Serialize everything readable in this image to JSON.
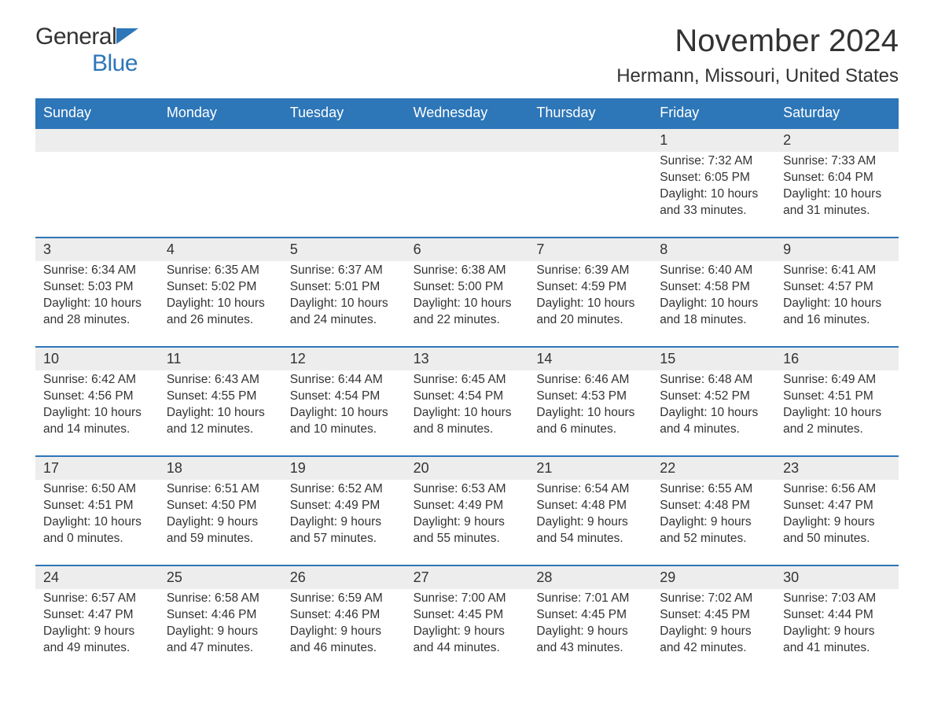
{
  "logo": {
    "word1": "General",
    "word2": "Blue"
  },
  "title": "November 2024",
  "location": "Hermann, Missouri, United States",
  "colors": {
    "brand": "#2d76b8",
    "row_bg": "#ededed",
    "text": "#333333",
    "bg": "#ffffff"
  },
  "days_of_week": [
    "Sunday",
    "Monday",
    "Tuesday",
    "Wednesday",
    "Thursday",
    "Friday",
    "Saturday"
  ],
  "weeks": [
    [
      null,
      null,
      null,
      null,
      null,
      {
        "n": "1",
        "sunrise": "Sunrise: 7:32 AM",
        "sunset": "Sunset: 6:05 PM",
        "day1": "Daylight: 10 hours",
        "day2": "and 33 minutes."
      },
      {
        "n": "2",
        "sunrise": "Sunrise: 7:33 AM",
        "sunset": "Sunset: 6:04 PM",
        "day1": "Daylight: 10 hours",
        "day2": "and 31 minutes."
      }
    ],
    [
      {
        "n": "3",
        "sunrise": "Sunrise: 6:34 AM",
        "sunset": "Sunset: 5:03 PM",
        "day1": "Daylight: 10 hours",
        "day2": "and 28 minutes."
      },
      {
        "n": "4",
        "sunrise": "Sunrise: 6:35 AM",
        "sunset": "Sunset: 5:02 PM",
        "day1": "Daylight: 10 hours",
        "day2": "and 26 minutes."
      },
      {
        "n": "5",
        "sunrise": "Sunrise: 6:37 AM",
        "sunset": "Sunset: 5:01 PM",
        "day1": "Daylight: 10 hours",
        "day2": "and 24 minutes."
      },
      {
        "n": "6",
        "sunrise": "Sunrise: 6:38 AM",
        "sunset": "Sunset: 5:00 PM",
        "day1": "Daylight: 10 hours",
        "day2": "and 22 minutes."
      },
      {
        "n": "7",
        "sunrise": "Sunrise: 6:39 AM",
        "sunset": "Sunset: 4:59 PM",
        "day1": "Daylight: 10 hours",
        "day2": "and 20 minutes."
      },
      {
        "n": "8",
        "sunrise": "Sunrise: 6:40 AM",
        "sunset": "Sunset: 4:58 PM",
        "day1": "Daylight: 10 hours",
        "day2": "and 18 minutes."
      },
      {
        "n": "9",
        "sunrise": "Sunrise: 6:41 AM",
        "sunset": "Sunset: 4:57 PM",
        "day1": "Daylight: 10 hours",
        "day2": "and 16 minutes."
      }
    ],
    [
      {
        "n": "10",
        "sunrise": "Sunrise: 6:42 AM",
        "sunset": "Sunset: 4:56 PM",
        "day1": "Daylight: 10 hours",
        "day2": "and 14 minutes."
      },
      {
        "n": "11",
        "sunrise": "Sunrise: 6:43 AM",
        "sunset": "Sunset: 4:55 PM",
        "day1": "Daylight: 10 hours",
        "day2": "and 12 minutes."
      },
      {
        "n": "12",
        "sunrise": "Sunrise: 6:44 AM",
        "sunset": "Sunset: 4:54 PM",
        "day1": "Daylight: 10 hours",
        "day2": "and 10 minutes."
      },
      {
        "n": "13",
        "sunrise": "Sunrise: 6:45 AM",
        "sunset": "Sunset: 4:54 PM",
        "day1": "Daylight: 10 hours",
        "day2": "and 8 minutes."
      },
      {
        "n": "14",
        "sunrise": "Sunrise: 6:46 AM",
        "sunset": "Sunset: 4:53 PM",
        "day1": "Daylight: 10 hours",
        "day2": "and 6 minutes."
      },
      {
        "n": "15",
        "sunrise": "Sunrise: 6:48 AM",
        "sunset": "Sunset: 4:52 PM",
        "day1": "Daylight: 10 hours",
        "day2": "and 4 minutes."
      },
      {
        "n": "16",
        "sunrise": "Sunrise: 6:49 AM",
        "sunset": "Sunset: 4:51 PM",
        "day1": "Daylight: 10 hours",
        "day2": "and 2 minutes."
      }
    ],
    [
      {
        "n": "17",
        "sunrise": "Sunrise: 6:50 AM",
        "sunset": "Sunset: 4:51 PM",
        "day1": "Daylight: 10 hours",
        "day2": "and 0 minutes."
      },
      {
        "n": "18",
        "sunrise": "Sunrise: 6:51 AM",
        "sunset": "Sunset: 4:50 PM",
        "day1": "Daylight: 9 hours",
        "day2": "and 59 minutes."
      },
      {
        "n": "19",
        "sunrise": "Sunrise: 6:52 AM",
        "sunset": "Sunset: 4:49 PM",
        "day1": "Daylight: 9 hours",
        "day2": "and 57 minutes."
      },
      {
        "n": "20",
        "sunrise": "Sunrise: 6:53 AM",
        "sunset": "Sunset: 4:49 PM",
        "day1": "Daylight: 9 hours",
        "day2": "and 55 minutes."
      },
      {
        "n": "21",
        "sunrise": "Sunrise: 6:54 AM",
        "sunset": "Sunset: 4:48 PM",
        "day1": "Daylight: 9 hours",
        "day2": "and 54 minutes."
      },
      {
        "n": "22",
        "sunrise": "Sunrise: 6:55 AM",
        "sunset": "Sunset: 4:48 PM",
        "day1": "Daylight: 9 hours",
        "day2": "and 52 minutes."
      },
      {
        "n": "23",
        "sunrise": "Sunrise: 6:56 AM",
        "sunset": "Sunset: 4:47 PM",
        "day1": "Daylight: 9 hours",
        "day2": "and 50 minutes."
      }
    ],
    [
      {
        "n": "24",
        "sunrise": "Sunrise: 6:57 AM",
        "sunset": "Sunset: 4:47 PM",
        "day1": "Daylight: 9 hours",
        "day2": "and 49 minutes."
      },
      {
        "n": "25",
        "sunrise": "Sunrise: 6:58 AM",
        "sunset": "Sunset: 4:46 PM",
        "day1": "Daylight: 9 hours",
        "day2": "and 47 minutes."
      },
      {
        "n": "26",
        "sunrise": "Sunrise: 6:59 AM",
        "sunset": "Sunset: 4:46 PM",
        "day1": "Daylight: 9 hours",
        "day2": "and 46 minutes."
      },
      {
        "n": "27",
        "sunrise": "Sunrise: 7:00 AM",
        "sunset": "Sunset: 4:45 PM",
        "day1": "Daylight: 9 hours",
        "day2": "and 44 minutes."
      },
      {
        "n": "28",
        "sunrise": "Sunrise: 7:01 AM",
        "sunset": "Sunset: 4:45 PM",
        "day1": "Daylight: 9 hours",
        "day2": "and 43 minutes."
      },
      {
        "n": "29",
        "sunrise": "Sunrise: 7:02 AM",
        "sunset": "Sunset: 4:45 PM",
        "day1": "Daylight: 9 hours",
        "day2": "and 42 minutes."
      },
      {
        "n": "30",
        "sunrise": "Sunrise: 7:03 AM",
        "sunset": "Sunset: 4:44 PM",
        "day1": "Daylight: 9 hours",
        "day2": "and 41 minutes."
      }
    ]
  ]
}
